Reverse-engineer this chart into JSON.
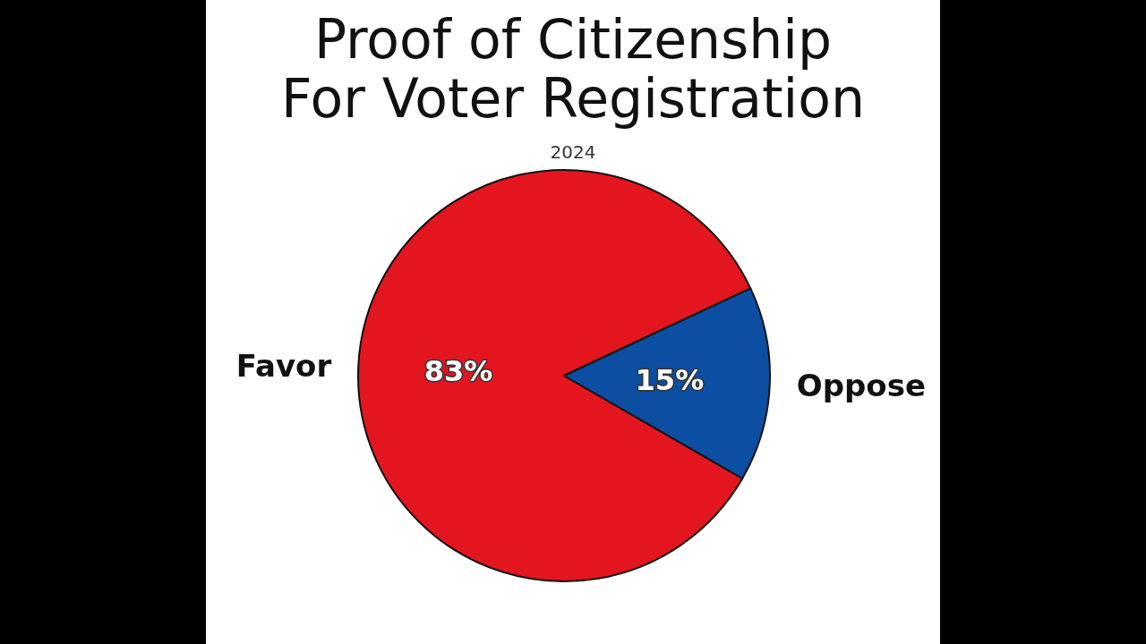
{
  "chart_data": {
    "type": "pie",
    "title": "Proof of Citizenship\nFor Voter Registration",
    "subtitle": "2024",
    "categories": [
      "Favor",
      "Oppose"
    ],
    "values": [
      83,
      15
    ],
    "colors": [
      "#e3161f",
      "#0b4ea2"
    ],
    "value_labels": [
      "83%",
      "15%"
    ],
    "legend": false
  }
}
